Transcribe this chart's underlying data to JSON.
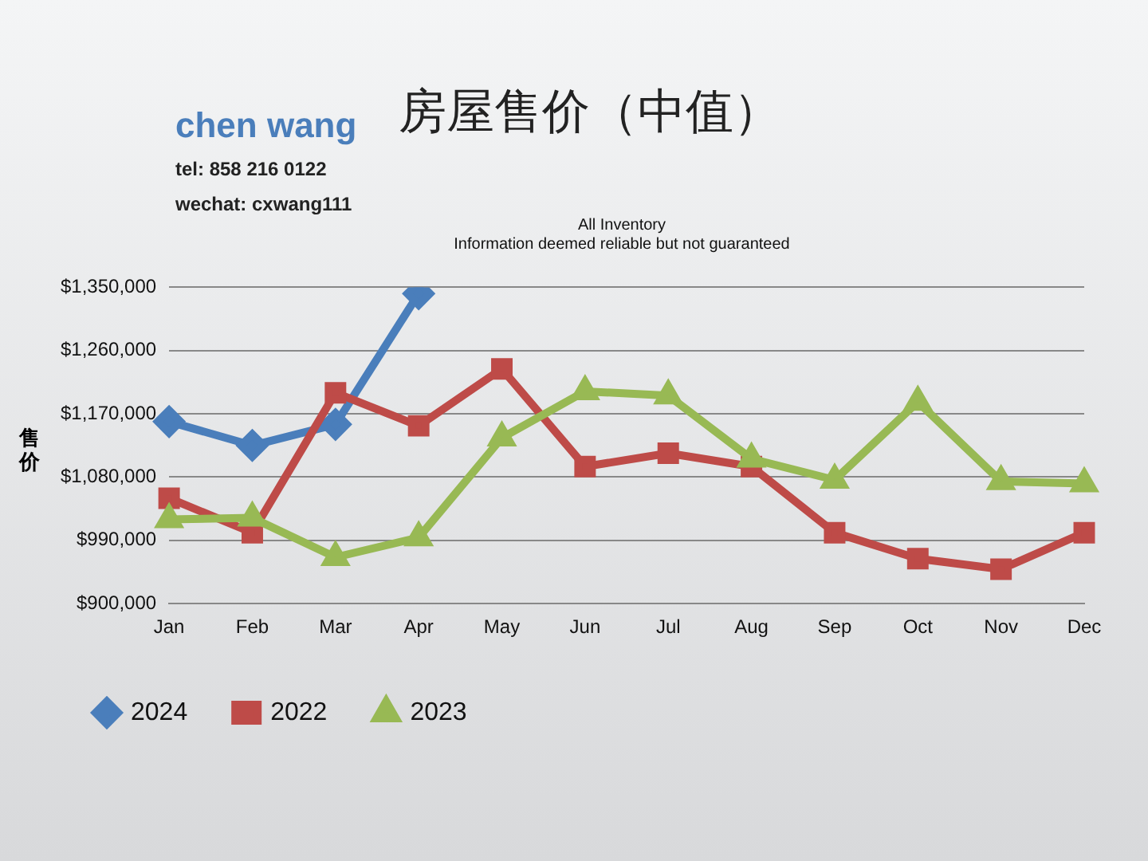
{
  "chart_data": {
    "type": "line",
    "title": "房屋售价（中值）",
    "ylabel": "售价",
    "annotations": [
      "chen wang",
      "tel: 858 216 0122",
      "wechat: cxwang111",
      "All Inventory",
      "Information deemed reliable but not guaranteed"
    ],
    "categories": [
      "Jan",
      "Feb",
      "Mar",
      "Apr",
      "May",
      "Jun",
      "Jul",
      "Aug",
      "Sep",
      "Oct",
      "Nov",
      "Dec"
    ],
    "series": [
      {
        "name": "2024",
        "color": "#4a7ebb",
        "marker": "diamond",
        "values": [
          1159000,
          1125000,
          1155000,
          1341000,
          null,
          null,
          null,
          null,
          null,
          null,
          null,
          null
        ]
      },
      {
        "name": "2022",
        "color": "#be4b48",
        "marker": "square",
        "values": [
          1050000,
          1001000,
          1200000,
          1153000,
          1234000,
          1095000,
          1114000,
          1095000,
          1001000,
          964000,
          949000,
          1001000
        ]
      },
      {
        "name": "2023",
        "color": "#98b954",
        "marker": "triangle",
        "values": [
          1020000,
          1022000,
          966000,
          994000,
          1136000,
          1202000,
          1196000,
          1106000,
          1076000,
          1187000,
          1074000,
          1071000
        ]
      }
    ],
    "ylim": [
      900000,
      1350000
    ],
    "yticks": [
      {
        "value": 900000,
        "label": "$900,000"
      },
      {
        "value": 990000,
        "label": "$990,000"
      },
      {
        "value": 1080000,
        "label": "$1,080,000"
      },
      {
        "value": 1170000,
        "label": "$1,170,000"
      },
      {
        "value": 1260000,
        "label": "$1,260,000"
      },
      {
        "value": 1350000,
        "label": "$1,350,000"
      }
    ],
    "grid": "y",
    "legend": "bottom"
  }
}
